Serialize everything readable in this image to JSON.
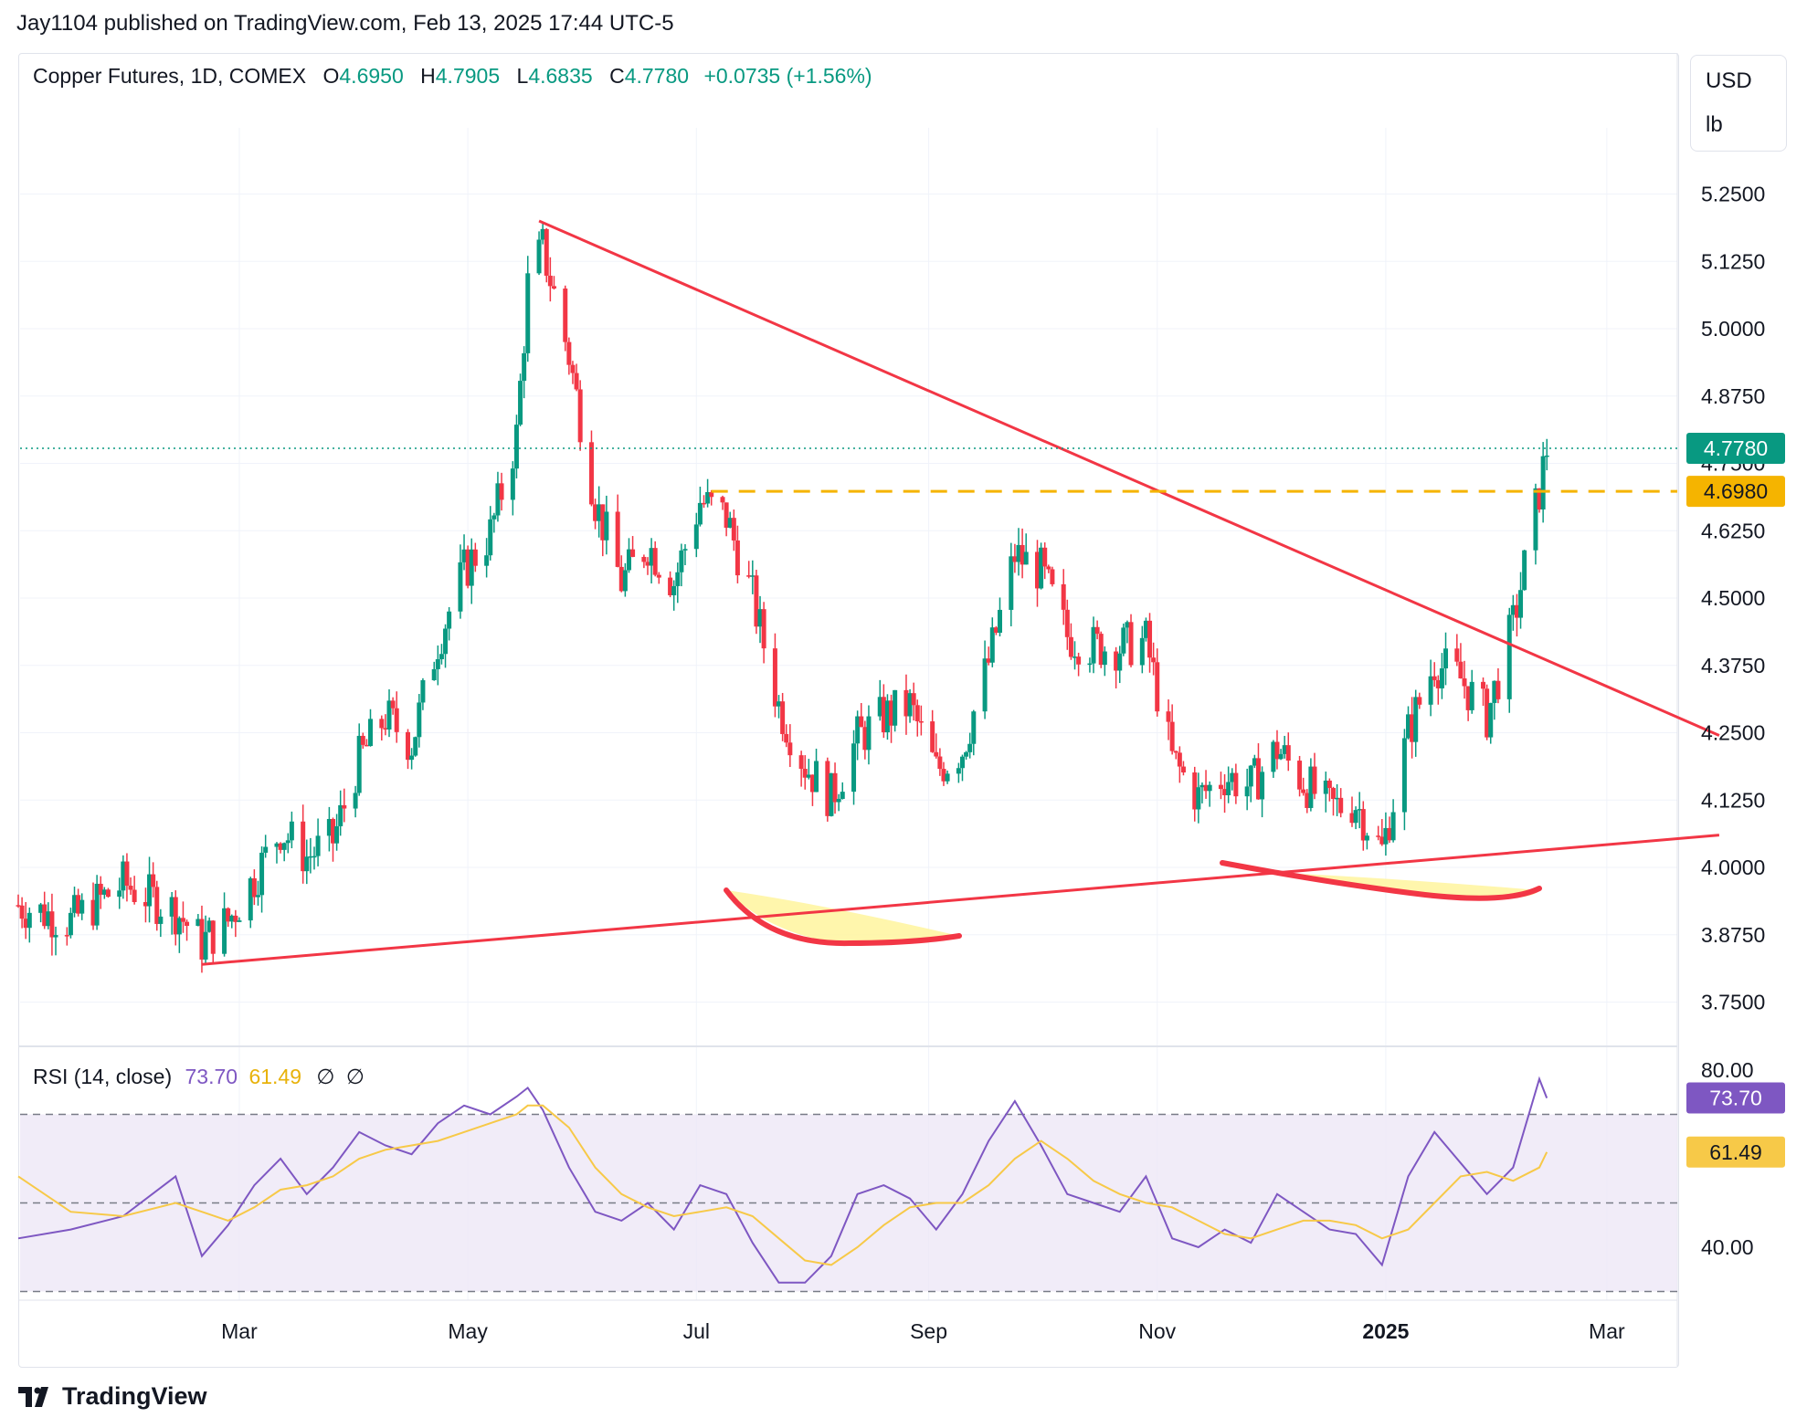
{
  "header": {
    "published": "Jay1104 published on TradingView.com, Feb 13, 2025 17:44 UTC-5"
  },
  "legend": {
    "symbol": "Copper Futures, 1D, COMEX",
    "open_label": "O",
    "open": "4.6950",
    "high_label": "H",
    "high": "4.7905",
    "low_label": "L",
    "low": "4.6835",
    "close_label": "C",
    "close": "4.7780",
    "change": "+0.0735 (+1.56%)"
  },
  "unit_box": {
    "currency": "USD",
    "unit": "lb"
  },
  "price_badges": {
    "last": "4.7780",
    "level": "4.6980"
  },
  "rsi_legend": {
    "title": "RSI (14, close)",
    "rsi": "73.70",
    "ma": "61.49",
    "s1": "∅",
    "s2": "∅"
  },
  "rsi_badges": {
    "rsi": "73.70",
    "ma": "61.49"
  },
  "footer": {
    "brand": "TradingView"
  },
  "colors": {
    "up": "#089981",
    "down": "#f23645",
    "trendline": "#f23645",
    "level": "#f5b400",
    "rsi": "#7e57c2",
    "rsi_ma": "#f7c948",
    "rsi_band": "#ede7f6",
    "highlight": "#fff59d"
  },
  "chart_data": [
    {
      "type": "candlestick",
      "title": "Copper Futures, 1D, COMEX",
      "x_ticks": [
        "Mar",
        "May",
        "Jul",
        "Sep",
        "Nov",
        "2025",
        "Mar"
      ],
      "y_ticks": [
        "3.7500",
        "3.8750",
        "4.0000",
        "4.1250",
        "4.2500",
        "4.3750",
        "4.5000",
        "4.6250",
        "4.7500",
        "4.8750",
        "5.0000",
        "5.1250",
        "5.2500"
      ],
      "ylim": [
        3.7,
        5.38
      ],
      "last_price": 4.778,
      "horizontal_level": 4.698,
      "grid": true,
      "trendlines": [
        {
          "name": "descending resistance",
          "from": [
            "2024-05-20",
            5.2
          ],
          "to": [
            "2025-03-31",
            4.245
          ]
        },
        {
          "name": "ascending support",
          "from": [
            "2024-02-20",
            3.82
          ],
          "to": [
            "2025-03-31",
            4.06
          ]
        }
      ],
      "series": [
        {
          "name": "Close (approx.)",
          "x": [
            "2024-01-02",
            "2024-01-16",
            "2024-01-30",
            "2024-02-13",
            "2024-02-20",
            "2024-02-27",
            "2024-03-05",
            "2024-03-12",
            "2024-03-19",
            "2024-03-26",
            "2024-04-02",
            "2024-04-09",
            "2024-04-16",
            "2024-04-23",
            "2024-04-30",
            "2024-05-07",
            "2024-05-14",
            "2024-05-17",
            "2024-05-21",
            "2024-05-28",
            "2024-06-04",
            "2024-06-11",
            "2024-06-18",
            "2024-06-25",
            "2024-07-02",
            "2024-07-09",
            "2024-07-16",
            "2024-07-23",
            "2024-07-30",
            "2024-08-06",
            "2024-08-13",
            "2024-08-20",
            "2024-08-27",
            "2024-09-03",
            "2024-09-10",
            "2024-09-17",
            "2024-09-24",
            "2024-10-01",
            "2024-10-08",
            "2024-10-15",
            "2024-10-22",
            "2024-10-29",
            "2024-11-05",
            "2024-11-12",
            "2024-11-19",
            "2024-11-26",
            "2024-12-03",
            "2024-12-10",
            "2024-12-17",
            "2024-12-24",
            "2024-12-31",
            "2025-01-07",
            "2025-01-14",
            "2025-01-21",
            "2025-01-28",
            "2025-02-04",
            "2025-02-11",
            "2025-02-13"
          ],
          "values": [
            3.93,
            3.9,
            3.97,
            3.92,
            3.86,
            3.9,
            3.98,
            4.07,
            4.02,
            4.05,
            4.2,
            4.28,
            4.23,
            4.42,
            4.55,
            4.62,
            4.8,
            5.08,
            5.15,
            4.95,
            4.68,
            4.53,
            4.6,
            4.53,
            4.68,
            4.65,
            4.5,
            4.3,
            4.19,
            4.13,
            4.24,
            4.28,
            4.3,
            4.18,
            4.22,
            4.38,
            4.58,
            4.55,
            4.43,
            4.41,
            4.41,
            4.42,
            4.2,
            4.13,
            4.17,
            4.15,
            4.22,
            4.16,
            4.11,
            4.12,
            4.03,
            4.25,
            4.38,
            4.35,
            4.28,
            4.45,
            4.7,
            4.778
          ]
        }
      ]
    },
    {
      "type": "line",
      "title": "RSI (14, close)",
      "y_ticks": [
        "40.00",
        "80.00"
      ],
      "ylim": [
        30,
        85
      ],
      "band": [
        30,
        70
      ],
      "midline": 50,
      "series": [
        {
          "name": "RSI",
          "x": [
            "2024-01-02",
            "2024-01-16",
            "2024-01-30",
            "2024-02-13",
            "2024-02-20",
            "2024-02-27",
            "2024-03-05",
            "2024-03-12",
            "2024-03-19",
            "2024-03-26",
            "2024-04-02",
            "2024-04-09",
            "2024-04-16",
            "2024-04-23",
            "2024-04-30",
            "2024-05-07",
            "2024-05-14",
            "2024-05-17",
            "2024-05-21",
            "2024-05-28",
            "2024-06-04",
            "2024-06-11",
            "2024-06-18",
            "2024-06-25",
            "2024-07-02",
            "2024-07-09",
            "2024-07-16",
            "2024-07-23",
            "2024-07-30",
            "2024-08-06",
            "2024-08-13",
            "2024-08-20",
            "2024-08-27",
            "2024-09-03",
            "2024-09-10",
            "2024-09-17",
            "2024-09-24",
            "2024-10-01",
            "2024-10-08",
            "2024-10-15",
            "2024-10-22",
            "2024-10-29",
            "2024-11-05",
            "2024-11-12",
            "2024-11-19",
            "2024-11-26",
            "2024-12-03",
            "2024-12-10",
            "2024-12-17",
            "2024-12-24",
            "2024-12-31",
            "2025-01-07",
            "2025-01-14",
            "2025-01-21",
            "2025-01-28",
            "2025-02-04",
            "2025-02-11",
            "2025-02-13"
          ],
          "values": [
            42,
            44,
            47,
            56,
            38,
            45,
            54,
            60,
            52,
            58,
            66,
            63,
            61,
            68,
            72,
            70,
            74,
            76,
            71,
            58,
            48,
            46,
            50,
            44,
            54,
            52,
            41,
            32,
            32,
            38,
            52,
            54,
            51,
            44,
            52,
            64,
            73,
            63,
            52,
            50,
            48,
            56,
            42,
            40,
            44,
            41,
            52,
            48,
            44,
            43,
            36,
            56,
            66,
            59,
            52,
            58,
            78,
            73.7
          ]
        },
        {
          "name": "RSI-based MA",
          "x": [
            "2024-01-02",
            "2024-01-16",
            "2024-01-30",
            "2024-02-13",
            "2024-02-20",
            "2024-02-27",
            "2024-03-05",
            "2024-03-12",
            "2024-03-19",
            "2024-03-26",
            "2024-04-02",
            "2024-04-09",
            "2024-04-16",
            "2024-04-23",
            "2024-04-30",
            "2024-05-07",
            "2024-05-14",
            "2024-05-17",
            "2024-05-21",
            "2024-05-28",
            "2024-06-04",
            "2024-06-11",
            "2024-06-18",
            "2024-06-25",
            "2024-07-02",
            "2024-07-09",
            "2024-07-16",
            "2024-07-23",
            "2024-07-30",
            "2024-08-06",
            "2024-08-13",
            "2024-08-20",
            "2024-08-27",
            "2024-09-03",
            "2024-09-10",
            "2024-09-17",
            "2024-09-24",
            "2024-10-01",
            "2024-10-08",
            "2024-10-15",
            "2024-10-22",
            "2024-10-29",
            "2024-11-05",
            "2024-11-12",
            "2024-11-19",
            "2024-11-26",
            "2024-12-03",
            "2024-12-10",
            "2024-12-17",
            "2024-12-24",
            "2024-12-31",
            "2025-01-07",
            "2025-01-14",
            "2025-01-21",
            "2025-01-28",
            "2025-02-04",
            "2025-02-11",
            "2025-02-13"
          ],
          "values": [
            56,
            48,
            47,
            50,
            48,
            46,
            49,
            53,
            54,
            56,
            60,
            62,
            63,
            64,
            66,
            68,
            70,
            72,
            72,
            67,
            58,
            52,
            49,
            47,
            48,
            49,
            47,
            42,
            37,
            36,
            40,
            45,
            49,
            50,
            50,
            54,
            60,
            64,
            60,
            55,
            52,
            50,
            49,
            46,
            43,
            42,
            44,
            46,
            46,
            45,
            42,
            44,
            50,
            56,
            57,
            55,
            58,
            61.49
          ]
        }
      ]
    }
  ]
}
